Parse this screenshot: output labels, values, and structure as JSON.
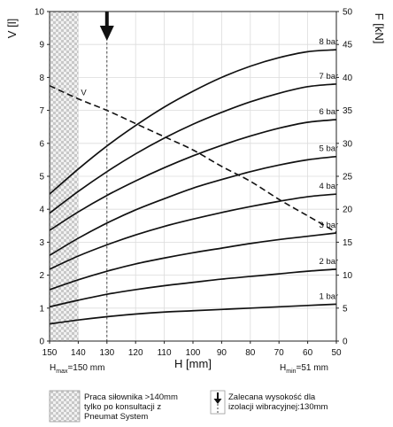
{
  "chart_data": {
    "type": "line",
    "xlabel": "H [mm]",
    "ylabel_left": "V [l]",
    "ylabel_right": "F [kN]",
    "xlim": [
      150,
      50
    ],
    "ylim_left": [
      0,
      10
    ],
    "ylim_right": [
      0,
      50
    ],
    "x_ticks": [
      150,
      140,
      130,
      120,
      110,
      100,
      90,
      80,
      70,
      60,
      50
    ],
    "y_ticks_left": [
      0,
      1,
      2,
      3,
      4,
      5,
      6,
      7,
      8,
      9,
      10
    ],
    "y_ticks_right": [
      0,
      5,
      10,
      15,
      20,
      25,
      30,
      35,
      40,
      45,
      50
    ],
    "grid": true,
    "x": [
      150,
      140,
      130,
      120,
      110,
      100,
      90,
      80,
      70,
      60,
      50
    ],
    "series": [
      {
        "name": "1 bar",
        "axis": "right",
        "style": "solid",
        "values": [
          2.6,
          3.2,
          3.7,
          4.1,
          4.4,
          4.6,
          4.8,
          5.0,
          5.2,
          5.4,
          5.6
        ]
      },
      {
        "name": "2 bar",
        "axis": "right",
        "style": "solid",
        "values": [
          5.2,
          6.2,
          7.1,
          7.8,
          8.4,
          8.9,
          9.4,
          9.8,
          10.2,
          10.6,
          10.9
        ]
      },
      {
        "name": "3 bar",
        "axis": "right",
        "style": "solid",
        "values": [
          7.8,
          9.3,
          10.6,
          11.7,
          12.6,
          13.4,
          14.1,
          14.8,
          15.4,
          15.9,
          16.4
        ]
      },
      {
        "name": "4 bar",
        "axis": "right",
        "style": "solid",
        "values": [
          10.9,
          12.9,
          14.6,
          16.1,
          17.4,
          18.5,
          19.5,
          20.4,
          21.2,
          21.9,
          22.3
        ]
      },
      {
        "name": "5 bar",
        "axis": "right",
        "style": "solid",
        "values": [
          13.0,
          15.6,
          17.9,
          19.9,
          21.6,
          23.2,
          24.5,
          25.7,
          26.7,
          27.5,
          28.0
        ]
      },
      {
        "name": "6 bar",
        "axis": "right",
        "style": "solid",
        "values": [
          16.8,
          19.6,
          22.1,
          24.3,
          26.3,
          28.1,
          29.7,
          31.1,
          32.3,
          33.2,
          33.6
        ]
      },
      {
        "name": "7 bar",
        "axis": "right",
        "style": "solid",
        "values": [
          19.4,
          22.7,
          25.7,
          28.4,
          30.8,
          32.9,
          34.7,
          36.3,
          37.6,
          38.6,
          39.0
        ]
      },
      {
        "name": "8 bar",
        "axis": "right",
        "style": "solid",
        "values": [
          22.3,
          26.1,
          29.6,
          32.7,
          35.5,
          37.9,
          40.0,
          41.7,
          43.0,
          43.9,
          44.2
        ]
      },
      {
        "name": "V",
        "axis": "left",
        "style": "dashed",
        "values": [
          7.75,
          7.35,
          7.0,
          6.6,
          6.2,
          5.8,
          5.3,
          4.85,
          4.3,
          3.8,
          3.3
        ]
      }
    ],
    "annotations": {
      "hatched_region_x": [
        150,
        140
      ],
      "recommended_height_x": 130,
      "h_max_label": "H",
      "h_max_sub": "max",
      "h_max_value": "=150 mm",
      "h_min_label": "H",
      "h_min_sub": "min",
      "h_min_value": "=51 mm"
    }
  },
  "legend": {
    "hatch_text": [
      "Praca siłownika >140mm",
      "tylko po konsultacji z",
      "Pneumat System"
    ],
    "arrow_text": [
      "Zalecana wysokość dla",
      "izolacji wibracyjnej:130mm"
    ]
  }
}
